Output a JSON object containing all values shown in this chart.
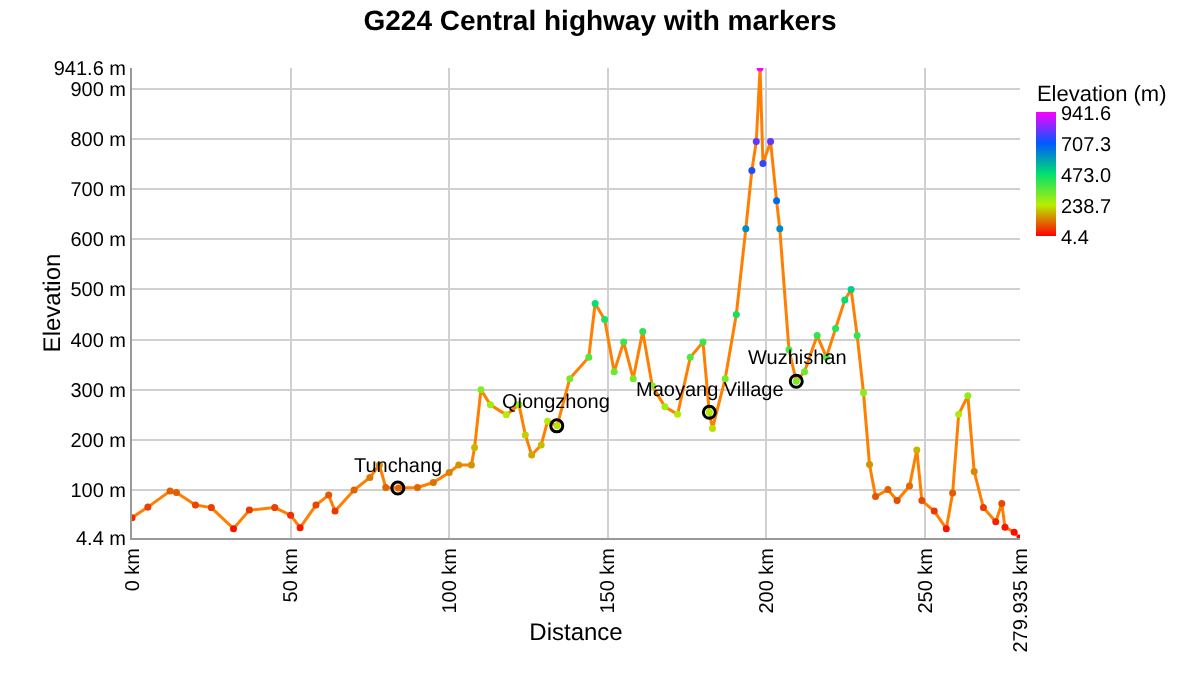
{
  "chart_data": {
    "type": "line",
    "title": "G224 Central highway with markers",
    "xlabel": "Distance",
    "ylabel": "Elevation",
    "clabel": "Elevation (m)",
    "clim": [
      4.4,
      941.6
    ],
    "cticks": [
      {
        "value": 4.4,
        "label": "4.4"
      },
      {
        "value": 238.7,
        "label": "238.7"
      },
      {
        "value": 473.0,
        "label": "473.0"
      },
      {
        "value": 707.3,
        "label": "707.3"
      },
      {
        "value": 941.6,
        "label": "941.6"
      }
    ],
    "xlim": [
      0,
      279.935
    ],
    "xticks": [
      {
        "value": 0,
        "label": "0 km"
      },
      {
        "value": 50,
        "label": "50 km"
      },
      {
        "value": 100,
        "label": "100 km"
      },
      {
        "value": 150,
        "label": "150 km"
      },
      {
        "value": 200,
        "label": "200 km"
      },
      {
        "value": 250,
        "label": "250 km"
      },
      {
        "value": 279.935,
        "label": "279.935 km"
      }
    ],
    "ylim": [
      4.4,
      941.6
    ],
    "yticks": [
      {
        "value": 4.4,
        "label": "4.4 m"
      },
      {
        "value": 100,
        "label": "100 m"
      },
      {
        "value": 200,
        "label": "200 m"
      },
      {
        "value": 300,
        "label": "300 m"
      },
      {
        "value": 400,
        "label": "400 m"
      },
      {
        "value": 500,
        "label": "500 m"
      },
      {
        "value": 600,
        "label": "600 m"
      },
      {
        "value": 700,
        "label": "700 m"
      },
      {
        "value": 800,
        "label": "800 m"
      },
      {
        "value": 900,
        "label": "900 m"
      },
      {
        "value": 941.6,
        "label": "941.6 m"
      }
    ],
    "grid": true,
    "marker": "none",
    "line_style": "solid",
    "series": [
      {
        "x": [
          0,
          5,
          12,
          14,
          20,
          25,
          32,
          37,
          45,
          50,
          53,
          58,
          62,
          64,
          70,
          75,
          78,
          80,
          84,
          90,
          95,
          100,
          103,
          107,
          108,
          110,
          113,
          118,
          122,
          124,
          126,
          129,
          131,
          134,
          138,
          144,
          146,
          149,
          152,
          155,
          158,
          161,
          164,
          168,
          172,
          176,
          180,
          182,
          183,
          187,
          190.5,
          193.5,
          195.4,
          196.8,
          198,
          198.9,
          201.3,
          203.2,
          204.2,
          207.1,
          209.4,
          212,
          216,
          218.9,
          221.8,
          224.7,
          226.7,
          228.6,
          230.6,
          232.5,
          234.4,
          238.3,
          241.2,
          245.1,
          247.4,
          249,
          252.9,
          256.7,
          258.7,
          260.6,
          263.5,
          265.5,
          268.4,
          272.3,
          274.2,
          275.2,
          278.1,
          279.935
        ],
        "values": [
          45,
          66,
          98,
          95,
          70,
          65,
          23,
          60,
          65,
          50,
          25,
          70,
          90,
          58,
          100,
          125,
          150,
          105,
          104,
          105,
          115,
          135,
          150,
          150,
          185,
          300,
          270,
          250,
          270,
          210,
          170,
          190,
          237,
          228,
          322,
          365,
          472,
          440,
          336,
          395,
          322,
          416,
          308,
          266,
          251,
          365,
          395,
          255,
          223,
          322,
          450,
          621,
          737,
          795,
          941.6,
          751,
          795,
          677,
          621,
          380,
          317,
          336,
          408,
          365,
          422,
          479,
          500,
          408,
          294,
          151,
          87,
          101,
          79,
          108,
          180,
          79,
          58,
          23,
          94,
          251,
          288,
          137,
          65,
          37,
          73,
          26,
          16,
          4.4
        ],
        "color": "#ff8000"
      }
    ],
    "annotations": [
      {
        "text": "Tunchang",
        "x": 83.8,
        "y": 104
      },
      {
        "text": "Qiongzhong",
        "x": 133.9,
        "y": 228
      },
      {
        "text": "Maoyang Village",
        "x": 182.0,
        "y": 255
      },
      {
        "text": "Wuzhishan",
        "x": 209.4,
        "y": 317
      }
    ]
  }
}
